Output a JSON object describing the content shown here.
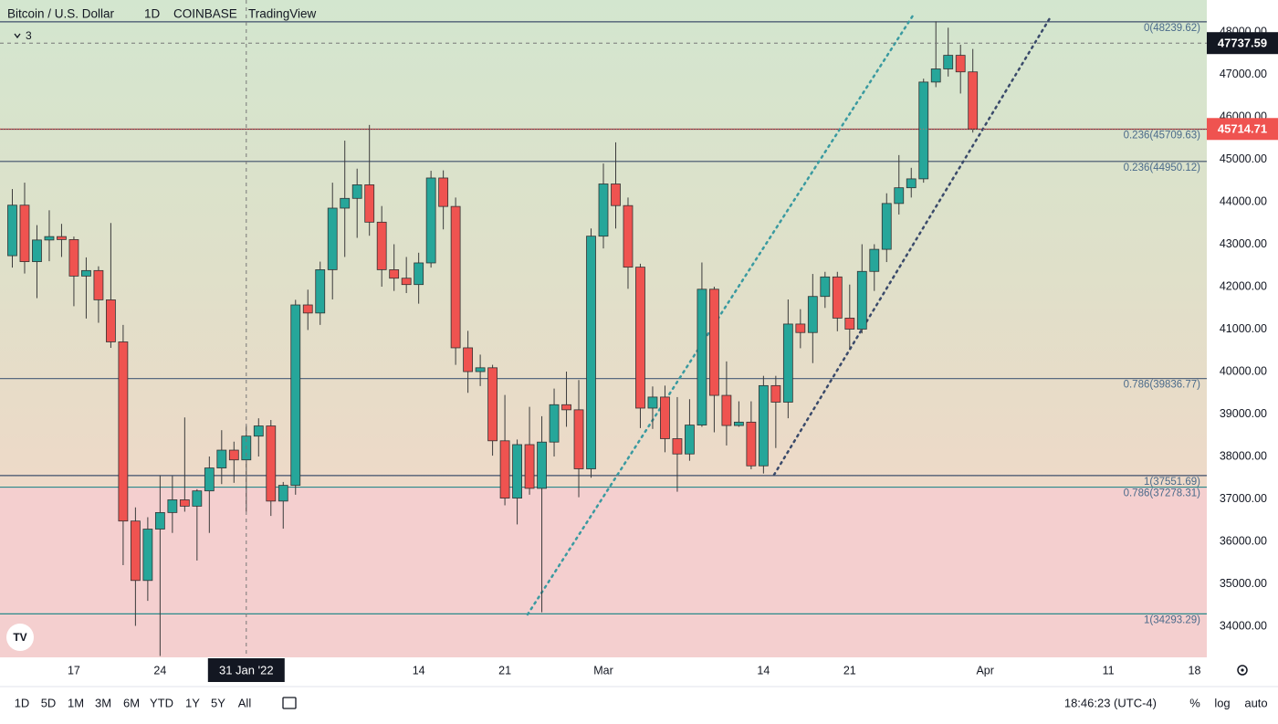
{
  "header": {
    "symbol": "Bitcoin / U.S. Dollar",
    "interval": "1D",
    "exchange": "COINBASE",
    "source": "TradingView",
    "indicators": "3"
  },
  "chart_data": {
    "type": "candlestick",
    "x": [
      "2022-01-12",
      "2022-01-13",
      "2022-01-14",
      "2022-01-15",
      "2022-01-16",
      "2022-01-17",
      "2022-01-18",
      "2022-01-19",
      "2022-01-20",
      "2022-01-21",
      "2022-01-22",
      "2022-01-23",
      "2022-01-24",
      "2022-01-25",
      "2022-01-26",
      "2022-01-27",
      "2022-01-28",
      "2022-01-29",
      "2022-01-30",
      "2022-01-31",
      "2022-02-01",
      "2022-02-02",
      "2022-02-03",
      "2022-02-04",
      "2022-02-05",
      "2022-02-06",
      "2022-02-07",
      "2022-02-08",
      "2022-02-09",
      "2022-02-10",
      "2022-02-11",
      "2022-02-12",
      "2022-02-13",
      "2022-02-14",
      "2022-02-15",
      "2022-02-16",
      "2022-02-17",
      "2022-02-18",
      "2022-02-19",
      "2022-02-20",
      "2022-02-21",
      "2022-02-22",
      "2022-02-23",
      "2022-02-24",
      "2022-02-25",
      "2022-02-26",
      "2022-02-27",
      "2022-02-28",
      "2022-03-01",
      "2022-03-02",
      "2022-03-03",
      "2022-03-04",
      "2022-03-05",
      "2022-03-06",
      "2022-03-07",
      "2022-03-08",
      "2022-03-09",
      "2022-03-10",
      "2022-03-11",
      "2022-03-12",
      "2022-03-13",
      "2022-03-14",
      "2022-03-15",
      "2022-03-16",
      "2022-03-17",
      "2022-03-18",
      "2022-03-19",
      "2022-03-20",
      "2022-03-21",
      "2022-03-22",
      "2022-03-23",
      "2022-03-24",
      "2022-03-25",
      "2022-03-26",
      "2022-03-27",
      "2022-03-28",
      "2022-03-29",
      "2022-03-30",
      "2022-03-31"
    ],
    "open": [
      42730,
      43920,
      42590,
      43100,
      43180,
      43110,
      42250,
      42380,
      41690,
      40700,
      36480,
      35080,
      36290,
      36680,
      36980,
      36830,
      37190,
      37730,
      38150,
      37920,
      38480,
      38720,
      36950,
      37320,
      41570,
      41380,
      42400,
      43850,
      44080,
      44400,
      43520,
      42400,
      42200,
      42050,
      42560,
      44560,
      43890,
      40560,
      40000,
      40090,
      38370,
      37020,
      38280,
      37250,
      38340,
      39220,
      39100,
      37710,
      43190,
      44420,
      43910,
      42460,
      39140,
      39400,
      38420,
      38060,
      38740,
      41940,
      39440,
      38730,
      38810,
      37780,
      39670,
      39280,
      41120,
      40920,
      41770,
      42230,
      41260,
      41000,
      42360,
      42880,
      43960,
      44330,
      44540,
      46820,
      47130,
      47450,
      47060
    ],
    "high": [
      44300,
      44450,
      43450,
      43800,
      43480,
      43180,
      42690,
      42480,
      43500,
      41100,
      36800,
      36570,
      37550,
      37540,
      38920,
      37230,
      38000,
      38620,
      38350,
      38730,
      38900,
      38860,
      37400,
      41690,
      41930,
      42590,
      44450,
      45440,
      44780,
      45810,
      43900,
      43000,
      42700,
      42800,
      44730,
      44740,
      44100,
      40960,
      40400,
      40160,
      39450,
      38400,
      39170,
      38950,
      39600,
      40000,
      39800,
      43370,
      44900,
      45400,
      44100,
      42540,
      39650,
      39670,
      39400,
      39350,
      42570,
      42000,
      40240,
      39300,
      39300,
      39900,
      39900,
      41700,
      41470,
      42300,
      42350,
      42350,
      42050,
      43000,
      43000,
      44200,
      45100,
      44800,
      46900,
      48250,
      48100,
      47700,
      47600
    ],
    "low": [
      42450,
      42310,
      41730,
      42600,
      42700,
      41540,
      41250,
      41150,
      40560,
      35440,
      34010,
      34600,
      33300,
      36200,
      36700,
      35550,
      36200,
      37350,
      37380,
      36700,
      38000,
      36600,
      36300,
      37100,
      40980,
      41100,
      41700,
      42700,
      43150,
      43200,
      42000,
      41900,
      41850,
      41600,
      42450,
      43350,
      40160,
      39500,
      39660,
      38020,
      36850,
      36400,
      37100,
      34330,
      38000,
      38700,
      37040,
      37500,
      42900,
      43370,
      41950,
      38670,
      38650,
      38100,
      37170,
      37900,
      38700,
      38570,
      38260,
      38700,
      37700,
      37600,
      38200,
      38900,
      40550,
      40200,
      41500,
      40950,
      40550,
      40900,
      41900,
      42580,
      43700,
      44100,
      44450,
      46700,
      46950,
      46550,
      45630
    ],
    "close": [
      43920,
      42590,
      43100,
      43180,
      43110,
      42250,
      42380,
      41690,
      40700,
      36480,
      35080,
      36290,
      36680,
      36980,
      36830,
      37190,
      37730,
      38150,
      37920,
      38480,
      38720,
      36950,
      37320,
      41570,
      41380,
      42400,
      43850,
      44080,
      44400,
      43520,
      42400,
      42200,
      42050,
      42560,
      44560,
      43890,
      40560,
      40000,
      40090,
      38370,
      37020,
      38280,
      37250,
      38340,
      39220,
      39100,
      37710,
      43190,
      44420,
      43910,
      42460,
      39140,
      39400,
      38420,
      38060,
      38740,
      41940,
      39440,
      38730,
      38810,
      37780,
      39670,
      39280,
      41120,
      40920,
      41770,
      42230,
      41260,
      41000,
      42360,
      42880,
      43960,
      44330,
      44540,
      46820,
      47130,
      47450,
      47060,
      45714.71
    ],
    "up_color": "#26a69a",
    "down_color": "#ef5350",
    "xlim": [
      "2022-01-11",
      "2022-04-19"
    ],
    "xticks": [
      {
        "value": "2022-01-17",
        "label": "17"
      },
      {
        "value": "2022-01-24",
        "label": "24"
      },
      {
        "value": "2022-02-14",
        "label": "14"
      },
      {
        "value": "2022-02-21",
        "label": "21"
      },
      {
        "value": "2022-03-01",
        "label": "Mar"
      },
      {
        "value": "2022-03-14",
        "label": "14"
      },
      {
        "value": "2022-03-21",
        "label": "21"
      },
      {
        "value": "2022-04-01",
        "label": "Apr"
      },
      {
        "value": "2022-04-11",
        "label": "11"
      },
      {
        "value": "2022-04-18",
        "label": "18"
      }
    ],
    "ylim": [
      33269,
      48753
    ],
    "yticks": [
      {
        "value": 34000,
        "label": "34000.00"
      },
      {
        "value": 35000,
        "label": "35000.00"
      },
      {
        "value": 36000,
        "label": "36000.00"
      },
      {
        "value": 37000,
        "label": "37000.00"
      },
      {
        "value": 38000,
        "label": "38000.00"
      },
      {
        "value": 39000,
        "label": "39000.00"
      },
      {
        "value": 40000,
        "label": "40000.00"
      },
      {
        "value": 41000,
        "label": "41000.00"
      },
      {
        "value": 42000,
        "label": "42000.00"
      },
      {
        "value": 43000,
        "label": "43000.00"
      },
      {
        "value": 44000,
        "label": "44000.00"
      },
      {
        "value": 45000,
        "label": "45000.00"
      },
      {
        "value": 46000,
        "label": "46000.00"
      },
      {
        "value": 47000,
        "label": "47000.00"
      },
      {
        "value": 48000,
        "label": "48000.00"
      }
    ],
    "fib_levels": [
      {
        "value": 48239.62,
        "label": "0(48239.62)",
        "color": "#3f4f6b"
      },
      {
        "value": 45709.63,
        "label": "0.236(45709.63)",
        "color": "#7a3a44"
      },
      {
        "value": 44950.12,
        "label": "0.236(44950.12)",
        "color": "#3f4f6b"
      },
      {
        "value": 39836.77,
        "label": "0.786(39836.77)",
        "color": "#5a6a80"
      },
      {
        "value": 37551.69,
        "label": "1(37551.69)",
        "color": "#3f4f6b"
      },
      {
        "value": 37278.31,
        "label": "0.786(37278.31)",
        "color": "#2a8a8a"
      },
      {
        "value": 34293.29,
        "label": "1(34293.29)",
        "color": "#2a8a8a"
      }
    ],
    "crosshair": {
      "x": {
        "value": "2022-01-31",
        "label": "31 Jan '22"
      },
      "y": 47737.59
    }
  },
  "toolbar": {
    "ranges": [
      "1D",
      "5D",
      "1M",
      "3M",
      "6M",
      "YTD",
      "1Y",
      "5Y",
      "All"
    ],
    "time": "18:46:23 (UTC-4)",
    "percent": "%",
    "log": "log",
    "auto": "auto"
  }
}
